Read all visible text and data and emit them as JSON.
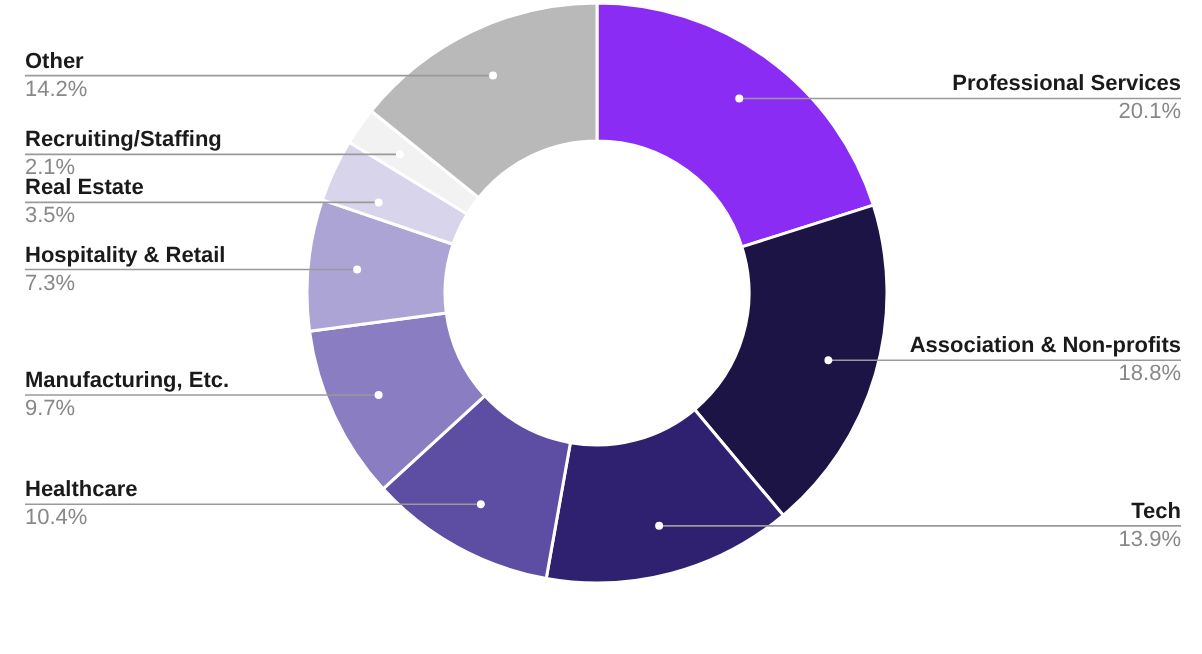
{
  "chart_data": {
    "type": "donut",
    "categories": [
      "Professional Services",
      "Association & Non-profits",
      "Tech",
      "Healthcare",
      "Manufacturing, Etc.",
      "Hospitality & Retail",
      "Real Estate",
      "Recruiting/Staffing",
      "Other"
    ],
    "values": [
      20.1,
      18.8,
      13.9,
      10.4,
      9.7,
      7.3,
      3.5,
      2.1,
      14.2
    ],
    "colors": [
      "#8a2cf3",
      "#1d1446",
      "#2f2170",
      "#5e4ea3",
      "#8a7dc2",
      "#ada4d6",
      "#d8d4ec",
      "#f2f2f2",
      "#b9b9b9"
    ],
    "value_labels": [
      "20.1%",
      "18.8%",
      "13.9%",
      "10.4%",
      "9.7%",
      "7.3%",
      "3.5%",
      "2.1%",
      "14.2%"
    ]
  }
}
